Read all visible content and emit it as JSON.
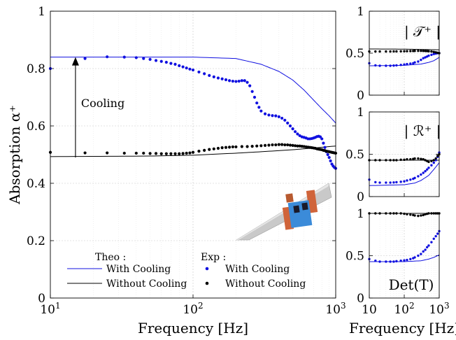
{
  "colors": {
    "with_cooling": "#1010e0",
    "without_cooling": "#000000"
  },
  "chart_data": [
    {
      "type": "line",
      "panel": "main",
      "xscale": "log",
      "xlim": [
        10,
        1000
      ],
      "ylim": [
        0,
        1
      ],
      "xlabel": "Frequency [Hz]",
      "ylabel": "Absorption α⁺",
      "xtick_labels": [
        "10¹",
        "10²",
        "10³"
      ],
      "ytick_labels": [
        "0",
        "0.2",
        "0.4",
        "0.6",
        "0.8",
        "1"
      ],
      "grid": true,
      "annotation": {
        "text": "Cooling",
        "arrow_from": [
          15,
          0.49
        ],
        "arrow_to": [
          15,
          0.84
        ]
      },
      "legend": {
        "placement": "bottom",
        "theo_title": "Theo :",
        "exp_title": "Exp :",
        "entries": [
          {
            "group": "theo",
            "label": "With Cooling"
          },
          {
            "group": "theo",
            "label": "Without Cooling"
          },
          {
            "group": "exp",
            "label": "With Cooling"
          },
          {
            "group": "exp",
            "label": "Without Cooling"
          }
        ]
      },
      "series": [
        {
          "name": "With Cooling",
          "kind": "theo",
          "x": [
            10,
            100,
            200,
            300,
            400,
            500,
            600,
            700,
            800,
            900,
            1000
          ],
          "y": [
            0.84,
            0.84,
            0.835,
            0.815,
            0.79,
            0.76,
            0.725,
            0.69,
            0.66,
            0.635,
            0.61
          ]
        },
        {
          "name": "Without Cooling",
          "kind": "theo",
          "x": [
            10,
            50,
            100,
            200,
            300,
            500,
            700,
            1000
          ],
          "y": [
            0.493,
            0.495,
            0.498,
            0.505,
            0.51,
            0.517,
            0.523,
            0.53
          ]
        },
        {
          "name": "With Cooling",
          "kind": "exp",
          "x": [
            10,
            17.5,
            25,
            33,
            40,
            45,
            50,
            55,
            60,
            65,
            70,
            75,
            80,
            85,
            90,
            95,
            100,
            110,
            120,
            130,
            140,
            150,
            160,
            170,
            180,
            190,
            200,
            210,
            220,
            230,
            240,
            250,
            260,
            270,
            280,
            290,
            300,
            320,
            340,
            360,
            380,
            400,
            420,
            440,
            460,
            480,
            500,
            520,
            540,
            560,
            580,
            600,
            620,
            640,
            660,
            680,
            700,
            720,
            740,
            760,
            780,
            800,
            820,
            840,
            860,
            880,
            900,
            920,
            940,
            960,
            980,
            1000
          ],
          "y": [
            0.8,
            0.835,
            0.841,
            0.84,
            0.838,
            0.835,
            0.832,
            0.828,
            0.825,
            0.822,
            0.818,
            0.815,
            0.81,
            0.806,
            0.802,
            0.798,
            0.795,
            0.788,
            0.782,
            0.776,
            0.771,
            0.767,
            0.764,
            0.761,
            0.758,
            0.756,
            0.755,
            0.756,
            0.758,
            0.758,
            0.752,
            0.74,
            0.72,
            0.7,
            0.68,
            0.665,
            0.652,
            0.642,
            0.638,
            0.636,
            0.635,
            0.632,
            0.627,
            0.62,
            0.61,
            0.6,
            0.59,
            0.58,
            0.572,
            0.566,
            0.562,
            0.56,
            0.558,
            0.555,
            0.555,
            0.556,
            0.558,
            0.56,
            0.563,
            0.564,
            0.562,
            0.555,
            0.54,
            0.525,
            0.51,
            0.5,
            0.49,
            0.478,
            0.467,
            0.46,
            0.455,
            0.452
          ]
        },
        {
          "name": "Without Cooling",
          "kind": "exp",
          "x": [
            10,
            17.5,
            25,
            33,
            40,
            45,
            50,
            55,
            60,
            65,
            70,
            75,
            80,
            85,
            90,
            95,
            100,
            110,
            120,
            130,
            140,
            150,
            160,
            170,
            180,
            190,
            200,
            220,
            240,
            260,
            280,
            300,
            320,
            340,
            360,
            380,
            400,
            420,
            440,
            460,
            480,
            500,
            520,
            540,
            560,
            580,
            600,
            620,
            640,
            660,
            680,
            700,
            720,
            740,
            760,
            780,
            800,
            820,
            840,
            860,
            880,
            900,
            920,
            940,
            960,
            980,
            1000
          ],
          "y": [
            0.508,
            0.506,
            0.506,
            0.505,
            0.505,
            0.505,
            0.504,
            0.504,
            0.503,
            0.503,
            0.503,
            0.503,
            0.503,
            0.504,
            0.505,
            0.506,
            0.508,
            0.512,
            0.515,
            0.518,
            0.52,
            0.522,
            0.524,
            0.525,
            0.526,
            0.527,
            0.527,
            0.528,
            0.528,
            0.529,
            0.53,
            0.531,
            0.532,
            0.533,
            0.534,
            0.534,
            0.535,
            0.535,
            0.534,
            0.534,
            0.533,
            0.532,
            0.531,
            0.53,
            0.53,
            0.529,
            0.528,
            0.527,
            0.526,
            0.525,
            0.524,
            0.523,
            0.522,
            0.52,
            0.519,
            0.518,
            0.517,
            0.515,
            0.514,
            0.512,
            0.511,
            0.51,
            0.509,
            0.508,
            0.507,
            0.506,
            0.505
          ]
        }
      ]
    },
    {
      "type": "line",
      "panel": "transmission",
      "title": "| 𝒯⁺ |",
      "xscale": "log",
      "xlim": [
        10,
        1000
      ],
      "ylim": [
        0,
        1
      ],
      "ytick_labels": [
        "0",
        "0.5",
        "1"
      ],
      "grid": true,
      "series": [
        {
          "name": "With Cooling",
          "kind": "theo",
          "x": [
            10,
            100,
            300,
            500,
            700,
            1000
          ],
          "y": [
            0.35,
            0.355,
            0.37,
            0.39,
            0.41,
            0.45
          ]
        },
        {
          "name": "Without Cooling",
          "kind": "theo",
          "x": [
            10,
            100,
            300,
            1000
          ],
          "y": [
            0.55,
            0.548,
            0.545,
            0.54
          ]
        },
        {
          "name": "With Cooling",
          "kind": "exp",
          "x": [
            10,
            15,
            20,
            30,
            40,
            50,
            60,
            80,
            100,
            120,
            150,
            180,
            200,
            250,
            300,
            350,
            400,
            450,
            500,
            600,
            700,
            800,
            900,
            1000
          ],
          "y": [
            0.38,
            0.355,
            0.35,
            0.35,
            0.35,
            0.352,
            0.355,
            0.36,
            0.365,
            0.37,
            0.375,
            0.38,
            0.39,
            0.4,
            0.42,
            0.44,
            0.45,
            0.46,
            0.47,
            0.48,
            0.49,
            0.495,
            0.5,
            0.5
          ]
        },
        {
          "name": "Without Cooling",
          "kind": "exp",
          "x": [
            10,
            15,
            20,
            30,
            40,
            50,
            60,
            80,
            100,
            120,
            150,
            180,
            200,
            250,
            300,
            350,
            400,
            450,
            500,
            600,
            700,
            800,
            900,
            1000
          ],
          "y": [
            0.52,
            0.52,
            0.52,
            0.52,
            0.52,
            0.521,
            0.521,
            0.522,
            0.523,
            0.524,
            0.525,
            0.526,
            0.527,
            0.528,
            0.528,
            0.527,
            0.526,
            0.525,
            0.523,
            0.52,
            0.515,
            0.51,
            0.505,
            0.5
          ]
        }
      ]
    },
    {
      "type": "line",
      "panel": "reflection",
      "title": "| ℛ⁺ |",
      "xscale": "log",
      "xlim": [
        10,
        1000
      ],
      "ylim": [
        0,
        1
      ],
      "ytick_labels": [
        "0",
        "0.5",
        "1"
      ],
      "grid": true,
      "series": [
        {
          "name": "With Cooling",
          "kind": "theo",
          "x": [
            10,
            100,
            200,
            300,
            500,
            700,
            1000
          ],
          "y": [
            0.13,
            0.14,
            0.16,
            0.19,
            0.25,
            0.32,
            0.4
          ]
        },
        {
          "name": "Without Cooling",
          "kind": "theo",
          "x": [
            10,
            100,
            300,
            1000
          ],
          "y": [
            0.43,
            0.43,
            0.43,
            0.43
          ]
        },
        {
          "name": "With Cooling",
          "kind": "exp",
          "x": [
            10,
            15,
            20,
            30,
            40,
            50,
            60,
            80,
            100,
            120,
            150,
            180,
            200,
            250,
            300,
            350,
            400,
            450,
            500,
            600,
            700,
            800,
            900,
            1000
          ],
          "y": [
            0.2,
            0.17,
            0.165,
            0.165,
            0.165,
            0.167,
            0.17,
            0.175,
            0.18,
            0.19,
            0.2,
            0.21,
            0.22,
            0.24,
            0.26,
            0.28,
            0.3,
            0.32,
            0.34,
            0.37,
            0.4,
            0.43,
            0.47,
            0.52
          ]
        },
        {
          "name": "Without Cooling",
          "kind": "exp",
          "x": [
            10,
            15,
            20,
            30,
            40,
            50,
            60,
            80,
            100,
            120,
            150,
            180,
            200,
            250,
            300,
            350,
            400,
            450,
            500,
            600,
            700,
            800,
            900,
            1000
          ],
          "y": [
            0.43,
            0.43,
            0.43,
            0.43,
            0.43,
            0.43,
            0.43,
            0.435,
            0.435,
            0.44,
            0.44,
            0.445,
            0.45,
            0.45,
            0.445,
            0.44,
            0.43,
            0.42,
            0.41,
            0.42,
            0.43,
            0.45,
            0.48,
            0.5
          ]
        }
      ]
    },
    {
      "type": "line",
      "panel": "determinant",
      "title": "Det(T)",
      "xscale": "log",
      "xlim": [
        10,
        1000
      ],
      "ylim": [
        0,
        1
      ],
      "xlabel": "Frequency [Hz]",
      "xtick_labels": [
        "10",
        "10²",
        "10³"
      ],
      "ytick_labels": [
        "0",
        "0.5",
        "1"
      ],
      "grid": true,
      "series": [
        {
          "name": "With Cooling",
          "kind": "theo",
          "x": [
            10,
            100,
            300,
            500,
            700,
            1000
          ],
          "y": [
            0.43,
            0.43,
            0.44,
            0.46,
            0.48,
            0.51
          ]
        },
        {
          "name": "Without Cooling",
          "kind": "theo",
          "x": [
            10,
            100,
            1000
          ],
          "y": [
            1.0,
            1.0,
            1.0
          ]
        },
        {
          "name": "With Cooling",
          "kind": "exp",
          "x": [
            10,
            15,
            20,
            30,
            40,
            50,
            60,
            80,
            100,
            120,
            150,
            180,
            200,
            250,
            300,
            350,
            400,
            450,
            500,
            600,
            700,
            800,
            900,
            1000
          ],
          "y": [
            0.46,
            0.44,
            0.43,
            0.43,
            0.43,
            0.43,
            0.435,
            0.44,
            0.445,
            0.45,
            0.46,
            0.47,
            0.48,
            0.5,
            0.52,
            0.55,
            0.57,
            0.6,
            0.62,
            0.66,
            0.7,
            0.73,
            0.76,
            0.79
          ]
        },
        {
          "name": "Without Cooling",
          "kind": "exp",
          "x": [
            10,
            15,
            20,
            30,
            40,
            50,
            60,
            80,
            100,
            120,
            150,
            180,
            200,
            250,
            300,
            350,
            400,
            450,
            500,
            600,
            700,
            800,
            900,
            1000
          ],
          "y": [
            1.0,
            1.0,
            1.0,
            1.0,
            1.0,
            1.0,
            1.0,
            1.0,
            0.995,
            0.99,
            0.985,
            0.98,
            0.975,
            0.97,
            0.975,
            0.98,
            0.99,
            0.995,
            1.0,
            1.0,
            1.0,
            1.0,
            1.0,
            1.0
          ]
        }
      ]
    }
  ]
}
